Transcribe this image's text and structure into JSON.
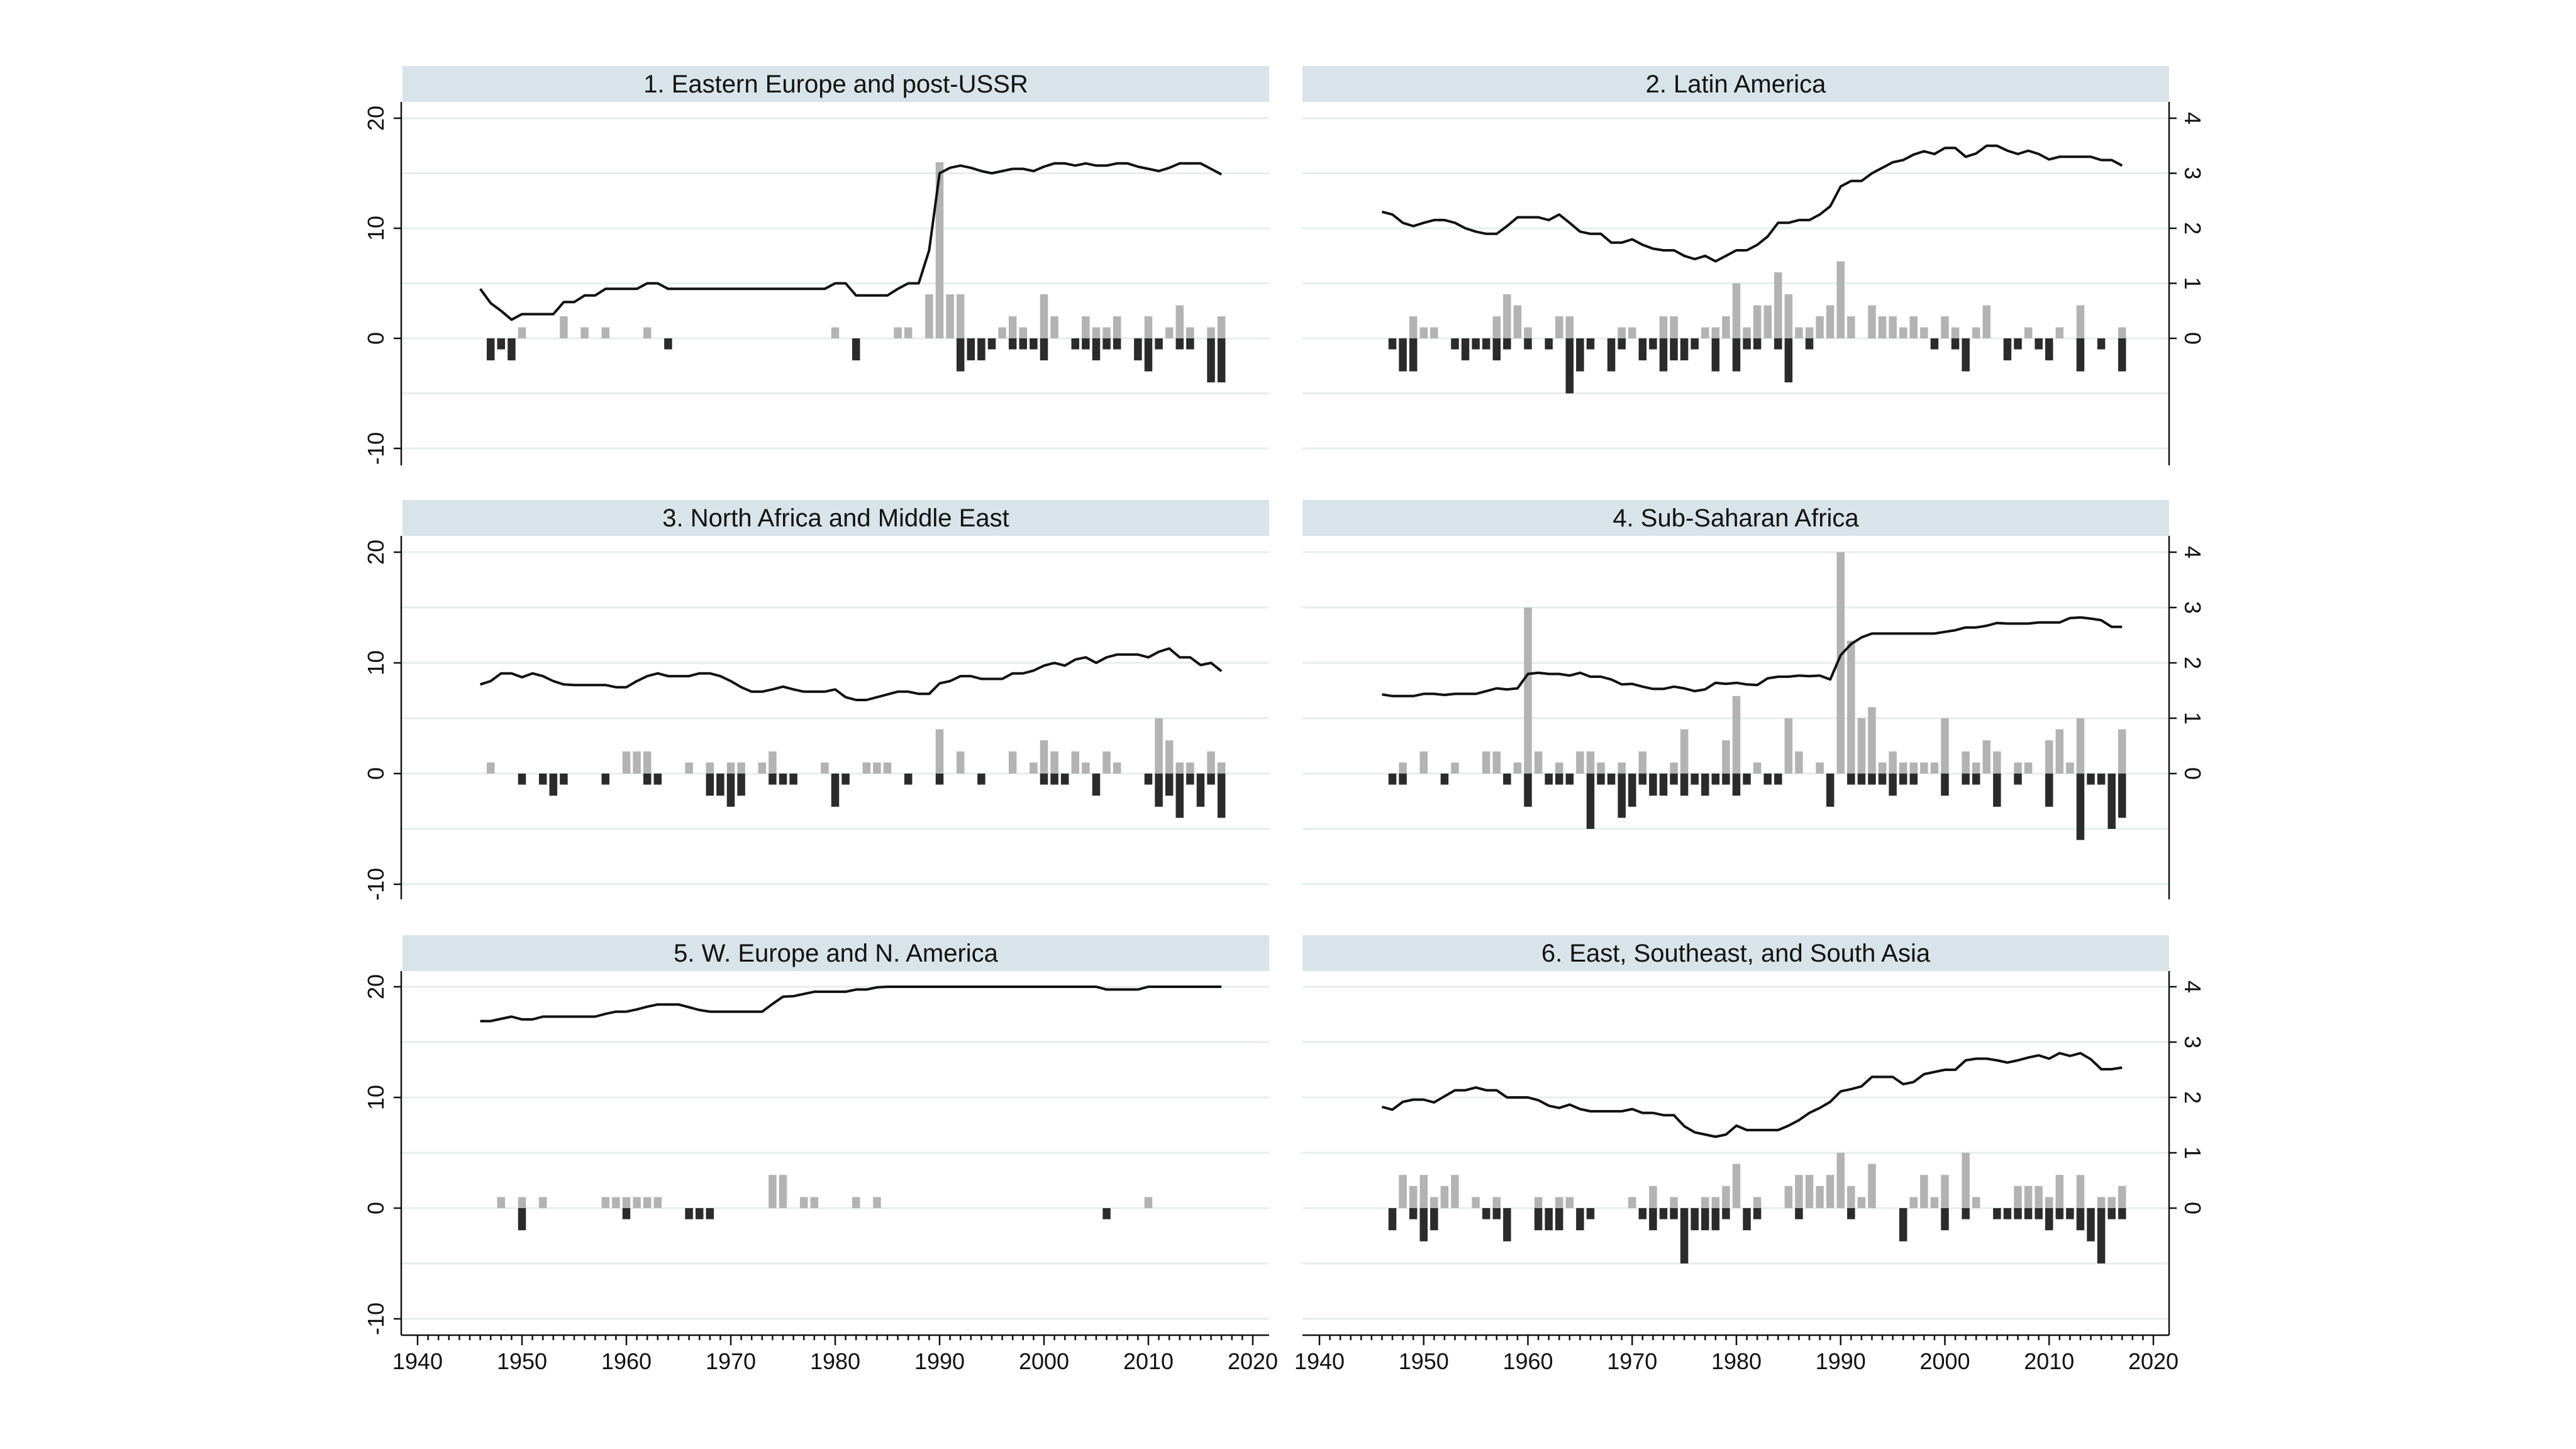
{
  "years": [
    1946,
    1947,
    1948,
    1949,
    1950,
    1951,
    1952,
    1953,
    1954,
    1955,
    1956,
    1957,
    1958,
    1959,
    1960,
    1961,
    1962,
    1963,
    1964,
    1965,
    1966,
    1967,
    1968,
    1969,
    1970,
    1971,
    1972,
    1973,
    1974,
    1975,
    1976,
    1977,
    1978,
    1979,
    1980,
    1981,
    1982,
    1983,
    1984,
    1985,
    1986,
    1987,
    1988,
    1989,
    1990,
    1991,
    1992,
    1993,
    1994,
    1995,
    1996,
    1997,
    1998,
    1999,
    2000,
    2001,
    2002,
    2003,
    2004,
    2005,
    2006,
    2007,
    2008,
    2009,
    2010,
    2011,
    2012,
    2013,
    2014,
    2015,
    2016,
    2017
  ],
  "colors": {
    "gain_bar": "#b3b3b3",
    "loss_bar": "#2b2b2b",
    "line": "#111111",
    "panel_header": "#d8e4e9",
    "grid": "#e6eeee"
  },
  "axes": {
    "x_range": [
      1940,
      2020
    ],
    "x_ticks": [
      "1940",
      "1950",
      "1960",
      "1970",
      "1980",
      "1990",
      "2000",
      "2010",
      "2020"
    ],
    "left_y_range": [
      -10,
      20
    ],
    "left_y_ticks": [
      "20",
      "10",
      "0",
      "-10"
    ],
    "right_y_ticks": [
      "4",
      "3",
      "2",
      "1",
      "0"
    ],
    "grid": true
  },
  "chart_data": [
    {
      "type": "bar+line",
      "title": "1. Eastern Europe and post-USSR",
      "y_axis": "left",
      "gains": {
        "1950": 1,
        "1954": 2,
        "1956": 1,
        "1958": 1,
        "1962": 1,
        "1980": 1,
        "1986": 1,
        "1987": 1,
        "1989": 4,
        "1990": 16,
        "1991": 4,
        "1992": 4,
        "1996": 1,
        "1997": 2,
        "1998": 1,
        "2000": 4,
        "2001": 2,
        "2004": 2,
        "2005": 1,
        "2006": 1,
        "2007": 2,
        "2010": 2,
        "2012": 1,
        "2013": 3,
        "2014": 1,
        "2016": 1,
        "2017": 2
      },
      "losses": {
        "1947": -2,
        "1948": -1,
        "1949": -2,
        "1964": -1,
        "1982": -2,
        "1992": -3,
        "1993": -2,
        "1994": -2,
        "1995": -1,
        "1997": -1,
        "1998": -1,
        "1999": -1,
        "2000": -2,
        "2003": -1,
        "2004": -1,
        "2005": -2,
        "2006": -1,
        "2007": -1,
        "2009": -2,
        "2010": -3,
        "2011": -1,
        "2013": -1,
        "2014": -1,
        "2016": -4,
        "2017": -4
      },
      "line": [
        0.9,
        0.64,
        0.5,
        0.34,
        0.44,
        0.44,
        0.44,
        0.44,
        0.66,
        0.66,
        0.78,
        0.78,
        0.9,
        0.9,
        0.9,
        0.9,
        1.0,
        1.0,
        0.9,
        0.9,
        0.9,
        0.9,
        0.9,
        0.9,
        0.9,
        0.9,
        0.9,
        0.9,
        0.9,
        0.9,
        0.9,
        0.9,
        0.9,
        0.9,
        1.0,
        1.0,
        0.78,
        0.78,
        0.78,
        0.78,
        0.9,
        1.0,
        1.0,
        1.6,
        3.0,
        3.1,
        3.14,
        3.1,
        3.04,
        3.0,
        3.04,
        3.08,
        3.08,
        3.04,
        3.12,
        3.18,
        3.18,
        3.14,
        3.18,
        3.14,
        3.14,
        3.18,
        3.18,
        3.12,
        3.08,
        3.04,
        3.1,
        3.18,
        3.18,
        3.18,
        3.08,
        2.98
      ]
    },
    {
      "type": "bar+line",
      "title": "2. Latin America",
      "y_axis": "right",
      "gains": {
        "1949": 2,
        "1950": 1,
        "1951": 1,
        "1957": 2,
        "1958": 4,
        "1959": 3,
        "1960": 1,
        "1963": 2,
        "1964": 2,
        "1969": 1,
        "1970": 1,
        "1973": 2,
        "1974": 2,
        "1977": 1,
        "1978": 1,
        "1979": 2,
        "1980": 5,
        "1981": 1,
        "1982": 3,
        "1983": 3,
        "1984": 6,
        "1985": 4,
        "1986": 1,
        "1987": 1,
        "1988": 2,
        "1989": 3,
        "1990": 7,
        "1991": 2,
        "1993": 3,
        "1994": 2,
        "1995": 2,
        "1996": 1,
        "1997": 2,
        "1998": 1,
        "2000": 2,
        "2001": 1,
        "2003": 1,
        "2004": 3,
        "2008": 1,
        "2011": 1,
        "2013": 3,
        "2017": 1
      },
      "losses": {
        "1947": -1,
        "1948": -3,
        "1949": -3,
        "1953": -1,
        "1954": -2,
        "1955": -1,
        "1956": -1,
        "1957": -2,
        "1958": -1,
        "1960": -1,
        "1962": -1,
        "1964": -5,
        "1965": -3,
        "1966": -1,
        "1968": -3,
        "1969": -1,
        "1971": -2,
        "1972": -1,
        "1973": -3,
        "1974": -2,
        "1975": -2,
        "1976": -1,
        "1978": -3,
        "1980": -3,
        "1981": -1,
        "1982": -1,
        "1984": -1,
        "1985": -4,
        "1987": -1,
        "1999": -1,
        "2001": -1,
        "2002": -3,
        "2006": -2,
        "2007": -1,
        "2009": -1,
        "2010": -2,
        "2013": -3,
        "2015": -1,
        "2017": -3
      },
      "line": [
        2.3,
        2.25,
        2.1,
        2.04,
        2.1,
        2.15,
        2.15,
        2.1,
        2.0,
        1.94,
        1.9,
        1.9,
        2.04,
        2.2,
        2.2,
        2.2,
        2.15,
        2.25,
        2.1,
        1.94,
        1.9,
        1.9,
        1.74,
        1.74,
        1.8,
        1.7,
        1.63,
        1.6,
        1.6,
        1.5,
        1.44,
        1.5,
        1.4,
        1.5,
        1.6,
        1.6,
        1.7,
        1.85,
        2.1,
        2.1,
        2.15,
        2.15,
        2.25,
        2.4,
        2.76,
        2.86,
        2.86,
        3.0,
        3.1,
        3.2,
        3.24,
        3.34,
        3.4,
        3.35,
        3.46,
        3.46,
        3.3,
        3.36,
        3.5,
        3.5,
        3.41,
        3.35,
        3.41,
        3.35,
        3.25,
        3.3,
        3.3,
        3.3,
        3.3,
        3.24,
        3.24,
        3.14
      ]
    },
    {
      "type": "bar+line",
      "title": "3. North Africa and Middle East",
      "y_axis": "left",
      "gains": {
        "1947": 1,
        "1960": 2,
        "1961": 2,
        "1962": 2,
        "1966": 1,
        "1968": 1,
        "1970": 1,
        "1971": 1,
        "1973": 1,
        "1974": 2,
        "1979": 1,
        "1983": 1,
        "1984": 1,
        "1985": 1,
        "1990": 4,
        "1992": 2,
        "1997": 2,
        "1999": 1,
        "2000": 3,
        "2001": 2,
        "2003": 2,
        "2004": 1,
        "2006": 2,
        "2007": 1,
        "2011": 5,
        "2012": 3,
        "2013": 1,
        "2014": 1,
        "2016": 2,
        "2017": 1
      },
      "losses": {
        "1950": -1,
        "1952": -1,
        "1953": -2,
        "1954": -1,
        "1958": -1,
        "1962": -1,
        "1963": -1,
        "1968": -2,
        "1969": -2,
        "1970": -3,
        "1971": -2,
        "1974": -1,
        "1975": -1,
        "1976": -1,
        "1980": -3,
        "1981": -1,
        "1987": -1,
        "1990": -1,
        "1994": -1,
        "2000": -1,
        "2001": -1,
        "2002": -1,
        "2005": -2,
        "2010": -1,
        "2011": -3,
        "2012": -2,
        "2013": -4,
        "2014": -1,
        "2015": -3,
        "2016": -1,
        "2017": -4
      },
      "line": [
        1.61,
        1.67,
        1.81,
        1.81,
        1.74,
        1.81,
        1.76,
        1.67,
        1.61,
        1.6,
        1.6,
        1.6,
        1.6,
        1.56,
        1.56,
        1.67,
        1.76,
        1.81,
        1.76,
        1.76,
        1.76,
        1.81,
        1.81,
        1.76,
        1.67,
        1.56,
        1.48,
        1.48,
        1.52,
        1.57,
        1.52,
        1.48,
        1.48,
        1.48,
        1.52,
        1.38,
        1.33,
        1.33,
        1.38,
        1.43,
        1.48,
        1.48,
        1.44,
        1.44,
        1.63,
        1.67,
        1.76,
        1.76,
        1.71,
        1.71,
        1.71,
        1.81,
        1.81,
        1.86,
        1.95,
        2.0,
        1.95,
        2.06,
        2.1,
        2.0,
        2.1,
        2.15,
        2.15,
        2.15,
        2.1,
        2.2,
        2.26,
        2.1,
        2.1,
        1.96,
        2.0,
        1.85
      ]
    },
    {
      "type": "bar+line",
      "title": "4. Sub-Saharan Africa",
      "y_axis": "right",
      "gains": {
        "1948": 1,
        "1950": 2,
        "1953": 1,
        "1956": 2,
        "1957": 2,
        "1959": 1,
        "1960": 15,
        "1961": 2,
        "1963": 1,
        "1965": 2,
        "1966": 2,
        "1967": 1,
        "1969": 1,
        "1971": 2,
        "1974": 1,
        "1975": 4,
        "1979": 3,
        "1980": 7,
        "1982": 1,
        "1985": 5,
        "1986": 2,
        "1988": 1,
        "1990": 20,
        "1991": 12,
        "1992": 5,
        "1993": 6,
        "1994": 1,
        "1995": 2,
        "1996": 1,
        "1997": 1,
        "1998": 1,
        "1999": 1,
        "2000": 5,
        "2002": 2,
        "2003": 1,
        "2004": 3,
        "2005": 2,
        "2007": 1,
        "2008": 1,
        "2010": 3,
        "2011": 4,
        "2012": 1,
        "2013": 5,
        "2017": 4
      },
      "losses": {
        "1947": -1,
        "1948": -1,
        "1952": -1,
        "1958": -1,
        "1960": -3,
        "1962": -1,
        "1963": -1,
        "1964": -1,
        "1966": -5,
        "1967": -1,
        "1968": -1,
        "1969": -4,
        "1970": -3,
        "1971": -1,
        "1972": -2,
        "1973": -2,
        "1974": -1,
        "1975": -2,
        "1976": -1,
        "1977": -2,
        "1978": -1,
        "1979": -1,
        "1980": -2,
        "1981": -1,
        "1983": -1,
        "1984": -1,
        "1989": -3,
        "1991": -1,
        "1992": -1,
        "1993": -1,
        "1994": -1,
        "1995": -2,
        "1996": -1,
        "1997": -1,
        "2000": -2,
        "2002": -1,
        "2003": -1,
        "2005": -3,
        "2007": -1,
        "2010": -3,
        "2013": -6,
        "2014": -1,
        "2015": -1,
        "2016": -5,
        "2017": -4
      },
      "line": [
        1.43,
        1.4,
        1.4,
        1.4,
        1.44,
        1.44,
        1.42,
        1.44,
        1.44,
        1.44,
        1.49,
        1.54,
        1.52,
        1.54,
        1.8,
        1.82,
        1.8,
        1.8,
        1.77,
        1.82,
        1.75,
        1.75,
        1.7,
        1.61,
        1.62,
        1.57,
        1.53,
        1.53,
        1.57,
        1.54,
        1.49,
        1.52,
        1.64,
        1.62,
        1.64,
        1.61,
        1.6,
        1.72,
        1.75,
        1.75,
        1.77,
        1.76,
        1.77,
        1.7,
        2.14,
        2.34,
        2.46,
        2.53,
        2.53,
        2.53,
        2.53,
        2.53,
        2.53,
        2.53,
        2.56,
        2.59,
        2.64,
        2.64,
        2.67,
        2.72,
        2.71,
        2.71,
        2.71,
        2.73,
        2.73,
        2.73,
        2.81,
        2.82,
        2.8,
        2.77,
        2.65,
        2.65
      ]
    },
    {
      "type": "bar+line",
      "title": "5. W. Europe and N. America",
      "y_axis": "left",
      "gains": {
        "1948": 1,
        "1950": 1,
        "1952": 1,
        "1958": 1,
        "1959": 1,
        "1960": 1,
        "1961": 1,
        "1962": 1,
        "1963": 1,
        "1974": 3,
        "1975": 3,
        "1977": 1,
        "1978": 1,
        "1982": 1,
        "1984": 1,
        "2010": 1
      },
      "losses": {
        "1950": -2,
        "1960": -1,
        "1966": -1,
        "1967": -1,
        "1968": -1,
        "2006": -1
      },
      "line": [
        3.38,
        3.38,
        3.42,
        3.46,
        3.41,
        3.41,
        3.46,
        3.46,
        3.46,
        3.46,
        3.46,
        3.46,
        3.51,
        3.55,
        3.55,
        3.59,
        3.64,
        3.68,
        3.68,
        3.68,
        3.63,
        3.58,
        3.55,
        3.55,
        3.55,
        3.55,
        3.55,
        3.55,
        3.69,
        3.82,
        3.83,
        3.87,
        3.91,
        3.91,
        3.91,
        3.91,
        3.95,
        3.95,
        3.99,
        4.0,
        4.0,
        4.0,
        4.0,
        4.0,
        4.0,
        4.0,
        4.0,
        4.0,
        4.0,
        4.0,
        4.0,
        4.0,
        4.0,
        4.0,
        4.0,
        4.0,
        4.0,
        4.0,
        4.0,
        4.0,
        3.95,
        3.95,
        3.95,
        3.95,
        4.0,
        4.0,
        4.0,
        4.0,
        4.0,
        4.0,
        4.0,
        4.0
      ]
    },
    {
      "type": "bar+line",
      "title": "6. East, Southeast, and South Asia",
      "y_axis": "right",
      "gains": {
        "1948": 3,
        "1949": 2,
        "1950": 3,
        "1951": 1,
        "1952": 2,
        "1953": 3,
        "1955": 1,
        "1957": 1,
        "1961": 1,
        "1963": 1,
        "1964": 1,
        "1970": 1,
        "1972": 2,
        "1974": 1,
        "1977": 1,
        "1978": 1,
        "1979": 2,
        "1980": 4,
        "1982": 1,
        "1985": 2,
        "1986": 3,
        "1987": 3,
        "1988": 2,
        "1989": 3,
        "1990": 5,
        "1991": 2,
        "1992": 1,
        "1993": 4,
        "1997": 1,
        "1998": 3,
        "1999": 1,
        "2000": 3,
        "2002": 5,
        "2003": 1,
        "2007": 2,
        "2008": 2,
        "2009": 2,
        "2010": 1,
        "2011": 3,
        "2013": 3,
        "2015": 1,
        "2016": 1,
        "2017": 2
      },
      "losses": {
        "1947": -2,
        "1949": -1,
        "1950": -3,
        "1951": -2,
        "1956": -1,
        "1957": -1,
        "1958": -3,
        "1961": -2,
        "1962": -2,
        "1963": -2,
        "1965": -2,
        "1966": -1,
        "1971": -1,
        "1972": -2,
        "1973": -1,
        "1974": -1,
        "1975": -5,
        "1976": -2,
        "1977": -2,
        "1978": -2,
        "1979": -1,
        "1981": -2,
        "1982": -1,
        "1986": -1,
        "1991": -1,
        "1996": -3,
        "2000": -2,
        "2002": -1,
        "2005": -1,
        "2006": -1,
        "2007": -1,
        "2008": -1,
        "2009": -1,
        "2010": -2,
        "2011": -1,
        "2012": -1,
        "2013": -2,
        "2014": -3,
        "2015": -5,
        "2016": -1,
        "2017": -1
      },
      "line": [
        1.83,
        1.78,
        1.92,
        1.96,
        1.96,
        1.91,
        2.02,
        2.13,
        2.13,
        2.18,
        2.13,
        2.13,
        2.0,
        2.0,
        2.0,
        1.95,
        1.85,
        1.81,
        1.87,
        1.79,
        1.75,
        1.75,
        1.75,
        1.75,
        1.79,
        1.72,
        1.72,
        1.68,
        1.68,
        1.48,
        1.37,
        1.33,
        1.29,
        1.33,
        1.49,
        1.41,
        1.41,
        1.41,
        1.41,
        1.49,
        1.59,
        1.72,
        1.81,
        1.92,
        2.11,
        2.15,
        2.2,
        2.37,
        2.37,
        2.37,
        2.24,
        2.28,
        2.42,
        2.46,
        2.5,
        2.5,
        2.67,
        2.7,
        2.7,
        2.67,
        2.63,
        2.67,
        2.72,
        2.76,
        2.7,
        2.8,
        2.75,
        2.8,
        2.69,
        2.51,
        2.51,
        2.54
      ]
    }
  ]
}
